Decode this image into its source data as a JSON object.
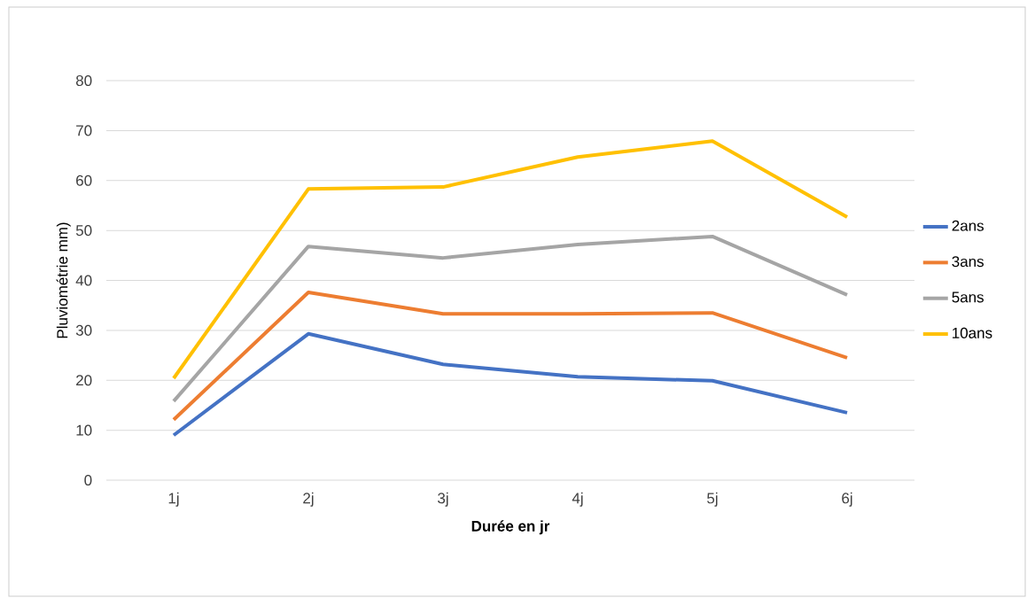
{
  "chart_data": {
    "type": "line",
    "xlabel": "Durée en jr",
    "ylabel": "Pluviométrie mm)",
    "categories": [
      "1j",
      "2j",
      "3j",
      "4j",
      "5j",
      "6j"
    ],
    "series": [
      {
        "name": "2ans",
        "color": "#4472c4",
        "values": [
          9.0,
          29.3,
          23.2,
          20.7,
          19.9,
          13.5
        ]
      },
      {
        "name": "3ans",
        "color": "#ed7d31",
        "values": [
          12.1,
          37.6,
          33.3,
          33.3,
          33.5,
          24.5
        ]
      },
      {
        "name": "5ans",
        "color": "#a5a5a5",
        "values": [
          15.8,
          46.8,
          44.5,
          47.2,
          48.8,
          37.1
        ]
      },
      {
        "name": "10ans",
        "color": "#ffc000",
        "values": [
          20.4,
          58.3,
          58.7,
          64.7,
          67.9,
          52.7
        ]
      }
    ],
    "ylim": [
      0,
      80
    ],
    "yticks": [
      0,
      10,
      20,
      30,
      40,
      50,
      60,
      70,
      80
    ],
    "grid": "y",
    "legend": "right",
    "marker": "none",
    "line_style": "solid"
  }
}
